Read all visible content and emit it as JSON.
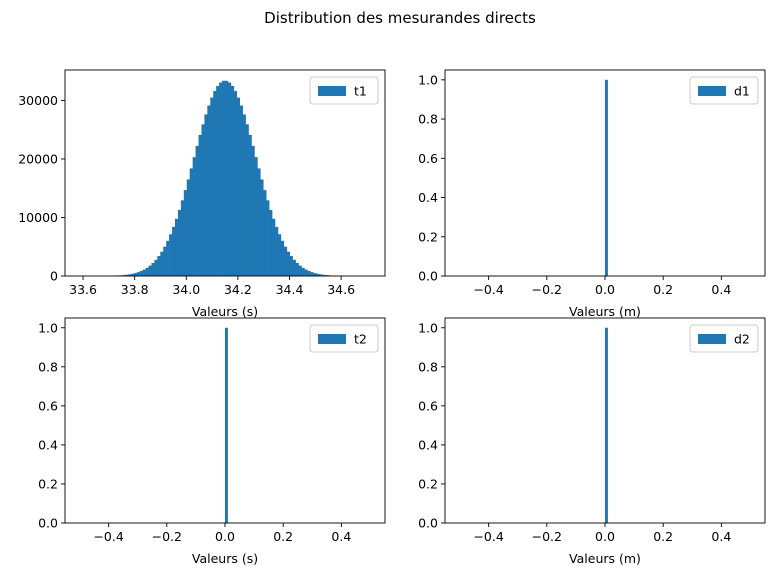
{
  "figure": {
    "suptitle": "Distribution des mesurandes directs"
  },
  "colors": {
    "bar": "#1f77b4",
    "axis": "#000000",
    "legend_edge": "#cccccc",
    "background": "#ffffff"
  },
  "chart_data": [
    {
      "id": "t1",
      "type": "bar",
      "subtype": "histogram",
      "xlabel": "Valeurs (s)",
      "ylabel": "",
      "xlim": [
        33.53,
        34.77
      ],
      "ylim": [
        0,
        35200
      ],
      "xticks": [
        33.6,
        33.8,
        34.0,
        34.2,
        34.4,
        34.6
      ],
      "xtick_labels": [
        "33.6",
        "33.8",
        "34.0",
        "34.2",
        "34.4",
        "34.6"
      ],
      "yticks": [
        0,
        10000,
        20000,
        30000
      ],
      "ytick_labels": [
        "0",
        "10000",
        "20000",
        "30000"
      ],
      "legend": {
        "placement": "upper right",
        "entries": [
          "t1"
        ]
      },
      "series": [
        {
          "name": "t1",
          "distribution": "normal",
          "mean": 34.15,
          "std": 0.12,
          "peak_count": 33400,
          "bins": 100,
          "range": [
            33.58,
            34.72
          ]
        }
      ]
    },
    {
      "id": "d1",
      "type": "bar",
      "subtype": "histogram",
      "xlabel": "Valeurs (m)",
      "ylabel": "",
      "xlim": [
        -0.55,
        0.55
      ],
      "ylim": [
        0,
        1.05
      ],
      "xticks": [
        -0.4,
        -0.2,
        0.0,
        0.2,
        0.4
      ],
      "xtick_labels": [
        "−0.4",
        "−0.2",
        "0.0",
        "0.2",
        "0.4"
      ],
      "yticks": [
        0.0,
        0.2,
        0.4,
        0.6,
        0.8,
        1.0
      ],
      "ytick_labels": [
        "0.0",
        "0.2",
        "0.4",
        "0.6",
        "0.8",
        "1.0"
      ],
      "legend": {
        "placement": "upper right",
        "entries": [
          "d1"
        ]
      },
      "series": [
        {
          "name": "d1",
          "bins": [
            {
              "left": 0.0,
              "right": 0.01,
              "value": 1.0
            }
          ]
        }
      ]
    },
    {
      "id": "t2",
      "type": "bar",
      "subtype": "histogram",
      "xlabel": "Valeurs (s)",
      "ylabel": "",
      "xlim": [
        -0.55,
        0.55
      ],
      "ylim": [
        0,
        1.05
      ],
      "xticks": [
        -0.4,
        -0.2,
        0.0,
        0.2,
        0.4
      ],
      "xtick_labels": [
        "−0.4",
        "−0.2",
        "0.0",
        "0.2",
        "0.4"
      ],
      "yticks": [
        0.0,
        0.2,
        0.4,
        0.6,
        0.8,
        1.0
      ],
      "ytick_labels": [
        "0.0",
        "0.2",
        "0.4",
        "0.6",
        "0.8",
        "1.0"
      ],
      "legend": {
        "placement": "upper right",
        "entries": [
          "t2"
        ]
      },
      "series": [
        {
          "name": "t2",
          "bins": [
            {
              "left": 0.0,
              "right": 0.01,
              "value": 1.0
            }
          ]
        }
      ]
    },
    {
      "id": "d2",
      "type": "bar",
      "subtype": "histogram",
      "xlabel": "Valeurs (m)",
      "ylabel": "",
      "xlim": [
        -0.55,
        0.55
      ],
      "ylim": [
        0,
        1.05
      ],
      "xticks": [
        -0.4,
        -0.2,
        0.0,
        0.2,
        0.4
      ],
      "xtick_labels": [
        "−0.4",
        "−0.2",
        "0.0",
        "0.2",
        "0.4"
      ],
      "yticks": [
        0.0,
        0.2,
        0.4,
        0.6,
        0.8,
        1.0
      ],
      "ytick_labels": [
        "0.0",
        "0.2",
        "0.4",
        "0.6",
        "0.8",
        "1.0"
      ],
      "legend": {
        "placement": "upper right",
        "entries": [
          "d2"
        ]
      },
      "series": [
        {
          "name": "d2",
          "bins": [
            {
              "left": 0.0,
              "right": 0.01,
              "value": 1.0
            }
          ]
        }
      ]
    }
  ]
}
